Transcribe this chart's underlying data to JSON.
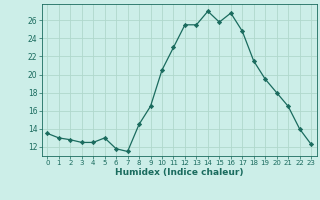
{
  "x": [
    0,
    1,
    2,
    3,
    4,
    5,
    6,
    7,
    8,
    9,
    10,
    11,
    12,
    13,
    14,
    15,
    16,
    17,
    18,
    19,
    20,
    21,
    22,
    23
  ],
  "y": [
    13.5,
    13.0,
    12.8,
    12.5,
    12.5,
    13.0,
    11.8,
    11.5,
    14.5,
    16.5,
    20.5,
    23.0,
    25.5,
    25.5,
    27.0,
    25.8,
    26.8,
    24.8,
    21.5,
    19.5,
    18.0,
    16.5,
    14.0,
    12.3
  ],
  "xlabel": "Humidex (Indice chaleur)",
  "bg_color": "#cceee8",
  "line_color": "#1a6b5e",
  "marker_color": "#1a6b5e",
  "grid_color": "#b0d8cc",
  "ylim": [
    11.0,
    27.8
  ],
  "xlim": [
    -0.5,
    23.5
  ],
  "yticks": [
    12,
    14,
    16,
    18,
    20,
    22,
    24,
    26
  ],
  "xticks": [
    0,
    1,
    2,
    3,
    4,
    5,
    6,
    7,
    8,
    9,
    10,
    11,
    12,
    13,
    14,
    15,
    16,
    17,
    18,
    19,
    20,
    21,
    22,
    23
  ]
}
